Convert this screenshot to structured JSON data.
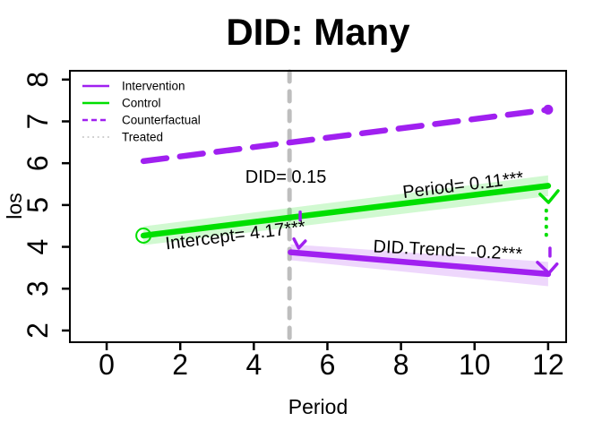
{
  "chart_data": {
    "type": "line",
    "title": "DID: Many",
    "xlabel": "Period",
    "ylabel": "los",
    "xlim": [
      -1.0,
      12.49
    ],
    "ylim": [
      1.72,
      8.21
    ],
    "xticks": [
      0,
      2,
      4,
      6,
      8,
      10,
      12
    ],
    "yticks": [
      2,
      3,
      4,
      5,
      6,
      7,
      8
    ],
    "grid": false,
    "legend_position": "top-left",
    "colors": {
      "purple": "#A020F0",
      "green": "#00DF00",
      "gray_vline": "#BEBEBE",
      "gray_dotted": "#C8C8C8",
      "text": "#000000"
    },
    "vline": {
      "name": "treatment-time",
      "x": 4.97,
      "color": "#BEBEBE"
    },
    "series": [
      {
        "name": "Counterfactual",
        "color": "#A020F0",
        "style": "dashed",
        "width": 6.5,
        "x": [
          1,
          12
        ],
        "y": [
          6.05,
          7.28
        ],
        "end_dot": true
      },
      {
        "name": "Control",
        "color": "#00DF00",
        "style": "solid",
        "width": 6.5,
        "x": [
          1,
          12
        ],
        "y": [
          4.27,
          5.46
        ],
        "start_circle": true,
        "band": {
          "upper": [
            4.49,
            5.71
          ],
          "lower": [
            4.04,
            5.21
          ],
          "opacity": 0.18
        }
      },
      {
        "name": "Intervention",
        "color": "#A020F0",
        "style": "solid",
        "width": 6.5,
        "x": [
          5,
          12
        ],
        "y": [
          3.87,
          3.35
        ],
        "band": {
          "upper": [
            4.06,
            3.64
          ],
          "lower": [
            3.68,
            3.06
          ],
          "opacity": 0.18
        }
      }
    ],
    "annotations": [
      {
        "text": "DID= 0.15",
        "x": 4.87,
        "y": 5.66,
        "rotate": 0
      },
      {
        "text": "Period= 0.11***",
        "x": 9.69,
        "y": 5.47,
        "rotate": -7
      },
      {
        "text": "Intercept= 4.17***",
        "x": 3.5,
        "y": 4.27,
        "rotate": -7
      },
      {
        "text": "DID.Trend= -0.2***",
        "x": 9.27,
        "y": 3.91,
        "rotate": 3
      }
    ],
    "legend": {
      "items": [
        {
          "label": "Intervention",
          "color": "#A020F0",
          "style": "solid"
        },
        {
          "label": "Control",
          "color": "#00DF00",
          "style": "solid"
        },
        {
          "label": "Counterfactual",
          "color": "#A020F0",
          "style": "dashed"
        },
        {
          "label": "Treated",
          "color": "#C8C8C8",
          "style": "dotted"
        }
      ]
    },
    "decorations": [
      {
        "name": "green-arrowhead",
        "color": "#00DF00",
        "width": 3.5,
        "dash": "",
        "points": [
          [
            11.78,
            5.26
          ],
          [
            12.01,
            5.06
          ],
          [
            12.27,
            5.34
          ]
        ]
      },
      {
        "name": "green-dotted-drop",
        "color": "#00DF00",
        "width": 4,
        "dash": "0.5 8.5",
        "points": [
          [
            11.95,
            4.87
          ],
          [
            11.95,
            4.12
          ]
        ]
      },
      {
        "name": "purple-dash-top",
        "color": "#A020F0",
        "width": 3.5,
        "dash": "",
        "points": [
          [
            12.05,
            3.97
          ],
          [
            12.05,
            3.78
          ]
        ]
      },
      {
        "name": "purple-arrowhead-end",
        "color": "#A020F0",
        "width": 3.5,
        "dash": "",
        "points": [
          [
            11.71,
            3.63
          ],
          [
            12.02,
            3.37
          ],
          [
            12.24,
            3.59
          ]
        ]
      },
      {
        "name": "purple-dash-start",
        "color": "#A020F0",
        "width": 3.5,
        "dash": "",
        "points": [
          [
            5.26,
            4.83
          ],
          [
            5.26,
            4.64
          ]
        ]
      },
      {
        "name": "purple-arrowhead-start",
        "color": "#A020F0",
        "width": 3.5,
        "dash": "",
        "points": [
          [
            5.09,
            4.19
          ],
          [
            5.22,
            3.97
          ],
          [
            5.4,
            4.14
          ]
        ]
      }
    ]
  }
}
